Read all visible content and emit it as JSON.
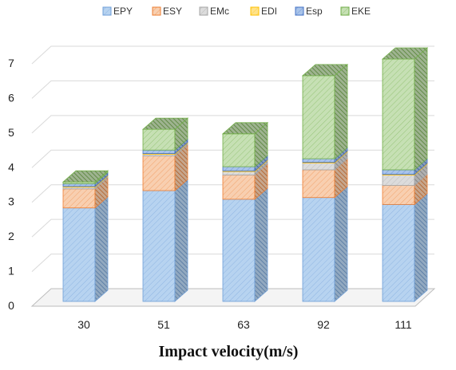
{
  "chart_data": {
    "type": "bar",
    "stacked": true,
    "three_d": true,
    "title": "",
    "xlabel": "Impact velocity(m/s)",
    "ylabel": "",
    "categories": [
      "30",
      "51",
      "63",
      "92",
      "111"
    ],
    "ylim": [
      0,
      7
    ],
    "yticks": [
      "0",
      "1",
      "2",
      "3",
      "4",
      "5",
      "6",
      "7"
    ],
    "grid": true,
    "legend_position": "top",
    "series": [
      {
        "name": "EPY",
        "values": [
          2.7,
          3.2,
          2.95,
          3.0,
          2.8
        ],
        "color": "#b7d3f0",
        "stroke": "#6f9fd8"
      },
      {
        "name": "ESY",
        "values": [
          0.55,
          1.0,
          0.7,
          0.8,
          0.55
        ],
        "color": "#f8cfb0",
        "stroke": "#ed7d31"
      },
      {
        "name": "EMc",
        "values": [
          0.05,
          0.05,
          0.1,
          0.2,
          0.3
        ],
        "color": "#dcdcdc",
        "stroke": "#a5a5a5"
      },
      {
        "name": "EDI",
        "values": [
          0.02,
          0.02,
          0.02,
          0.02,
          0.02
        ],
        "color": "#ffe28a",
        "stroke": "#ffc000"
      },
      {
        "name": "Esp",
        "values": [
          0.08,
          0.1,
          0.12,
          0.1,
          0.13
        ],
        "color": "#a9c4ea",
        "stroke": "#4472c4"
      },
      {
        "name": "EKE",
        "values": [
          0.05,
          0.6,
          0.95,
          2.4,
          3.2
        ],
        "color": "#c6e0b4",
        "stroke": "#70ad47"
      }
    ]
  }
}
